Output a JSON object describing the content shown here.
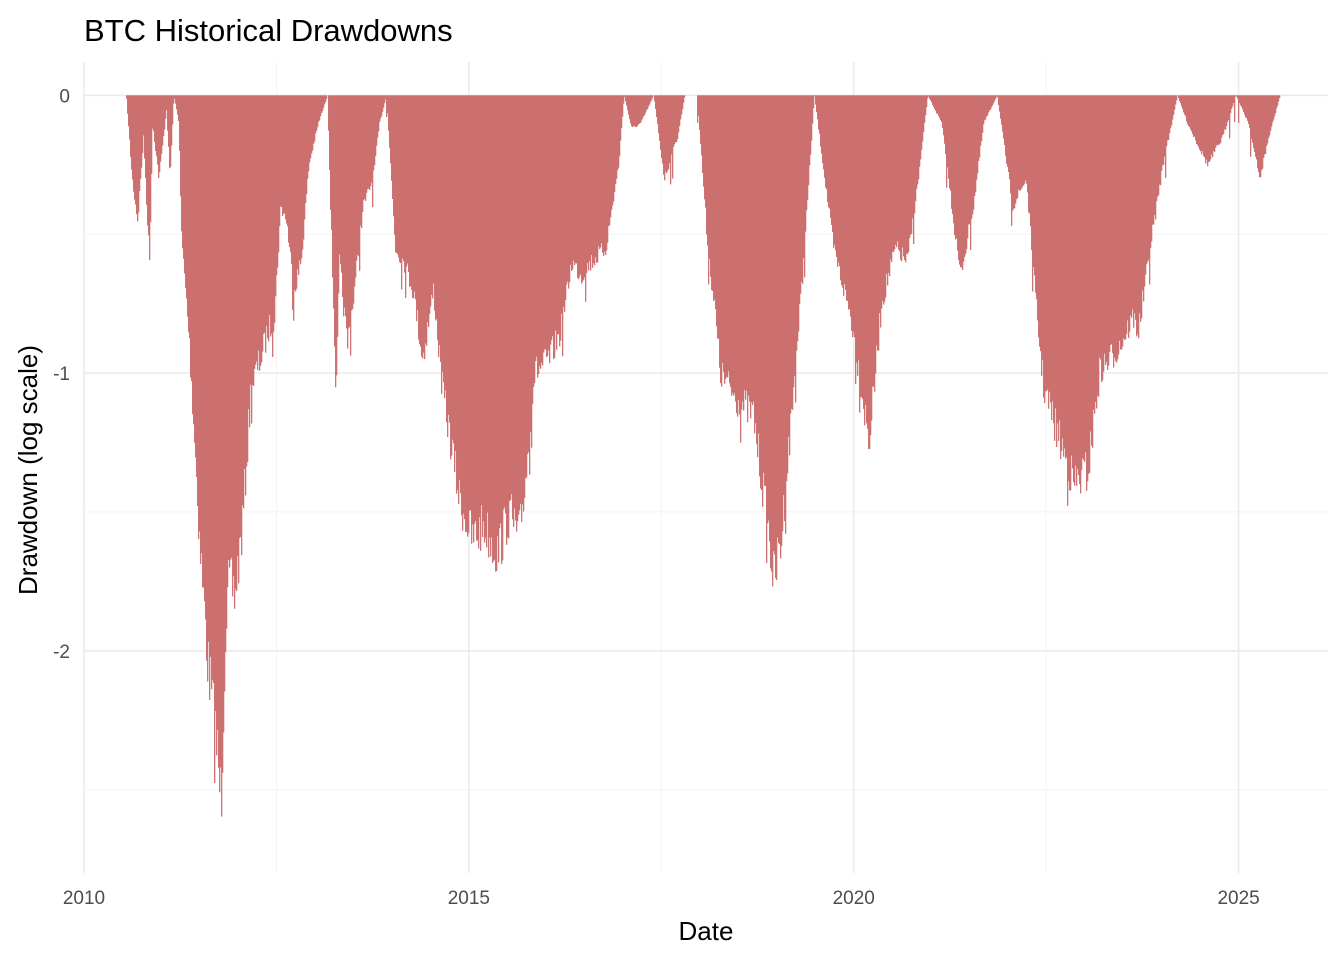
{
  "chart_data": {
    "type": "area",
    "title": "BTC Historical Drawdowns",
    "xlabel": "Date",
    "ylabel": "Drawdown (log scale)",
    "x_ticks": [
      "2010",
      "2015",
      "2020",
      "2025"
    ],
    "y_ticks": [
      "0",
      "-1",
      "-2"
    ],
    "xlim": [
      "2010-01-01",
      "2026-03-01"
    ],
    "ylim": [
      -2.8,
      0.12
    ],
    "grid": true,
    "legend": "none",
    "fill_color": "#c86464",
    "series": [
      {
        "x": [
          "2010-07-18",
          "2010-08-15",
          "2010-09-10",
          "2010-10-08",
          "2010-11-05",
          "2010-11-20",
          "2010-12-20",
          "2011-01-25",
          "2011-02-10",
          "2011-03-01",
          "2011-03-25",
          "2011-04-05",
          "2011-05-10",
          "2011-06-08",
          "2011-07-01",
          "2011-08-10",
          "2011-09-15",
          "2011-10-10",
          "2011-11-01",
          "2011-11-18",
          "2011-12-15",
          "2012-01-20",
          "2012-03-01",
          "2012-04-15",
          "2012-05-20",
          "2012-06-20",
          "2012-07-20",
          "2012-08-17",
          "2012-09-20",
          "2012-10-25",
          "2012-12-01",
          "2013-01-15",
          "2013-02-28",
          "2013-03-10",
          "2013-04-10",
          "2013-04-25",
          "2013-06-01",
          "2013-07-05",
          "2013-08-15",
          "2013-10-01",
          "2013-11-01",
          "2013-12-04",
          "2014-01-15",
          "2014-02-25",
          "2014-04-10",
          "2014-05-25",
          "2014-07-15",
          "2014-08-25",
          "2014-10-15",
          "2014-11-15",
          "2015-01-14",
          "2015-03-10",
          "2015-05-15",
          "2015-07-10",
          "2015-08-24",
          "2015-10-05",
          "2015-11-05",
          "2016-01-15",
          "2016-03-10",
          "2016-05-01",
          "2016-06-17",
          "2016-08-02",
          "2016-10-10",
          "2016-12-10",
          "2017-01-05",
          "2017-02-10",
          "2017-03-25",
          "2017-05-25",
          "2017-07-15",
          "2017-09-15",
          "2017-10-20",
          "2017-12-17",
          "2018-02-06",
          "2018-03-15",
          "2018-04-05",
          "2018-06-28",
          "2018-09-10",
          "2018-11-25",
          "2018-12-15",
          "2019-01-20",
          "2019-03-15",
          "2019-05-01",
          "2019-06-26",
          "2019-09-25",
          "2019-12-17",
          "2020-03-12",
          "2020-05-10",
          "2020-07-15",
          "2020-09-10",
          "2020-11-01",
          "2020-12-16",
          "2021-02-20",
          "2021-05-19",
          "2021-07-20",
          "2021-09-07",
          "2021-11-10",
          "2022-01-22",
          "2022-03-28",
          "2022-05-12",
          "2022-06-18",
          "2022-08-15",
          "2022-11-10",
          "2023-01-15",
          "2023-03-10",
          "2023-06-15",
          "2023-08-17",
          "2023-09-11",
          "2023-11-15",
          "2024-01-05",
          "2024-03-14",
          "2024-05-01",
          "2024-08-05",
          "2024-10-15",
          "2024-12-17",
          "2025-02-15",
          "2025-04-08",
          "2025-05-22",
          "2025-07-15"
        ],
        "y": [
          0,
          -0.3,
          -0.45,
          -0.15,
          -0.6,
          -0.1,
          -0.3,
          -0.05,
          -0.3,
          0,
          -0.1,
          -0.5,
          -0.85,
          -1.25,
          -1.6,
          -2.05,
          -2.3,
          -2.55,
          -1.9,
          -1.75,
          -1.8,
          -1.55,
          -1.05,
          -0.95,
          -0.85,
          -0.8,
          -0.4,
          -0.45,
          -0.7,
          -0.6,
          -0.25,
          -0.1,
          0,
          -0.3,
          -1.1,
          -0.6,
          -0.9,
          -0.7,
          -0.4,
          -0.3,
          -0.1,
          0,
          -0.55,
          -0.6,
          -0.7,
          -0.95,
          -0.7,
          -1.05,
          -1.3,
          -1.45,
          -1.6,
          -1.55,
          -1.65,
          -1.5,
          -1.6,
          -1.3,
          -1.0,
          -0.95,
          -0.85,
          -0.6,
          -0.65,
          -0.6,
          -0.55,
          -0.25,
          0,
          -0.12,
          -0.1,
          0,
          -0.3,
          -0.15,
          0,
          0,
          -0.55,
          -0.8,
          -1.0,
          -1.1,
          -1.15,
          -1.6,
          -1.75,
          -1.6,
          -1.1,
          -0.65,
          0,
          -0.55,
          -0.8,
          -1.25,
          -0.75,
          -0.55,
          -0.6,
          -0.3,
          0,
          -0.1,
          -0.65,
          -0.4,
          -0.1,
          0,
          -0.4,
          -0.3,
          -0.75,
          -1.05,
          -1.2,
          -1.4,
          -1.35,
          -1.0,
          -0.9,
          -0.8,
          -0.85,
          -0.5,
          -0.25,
          0,
          -0.1,
          -0.25,
          -0.15,
          0,
          -0.1,
          -0.3,
          -0.15,
          0
        ]
      }
    ]
  }
}
